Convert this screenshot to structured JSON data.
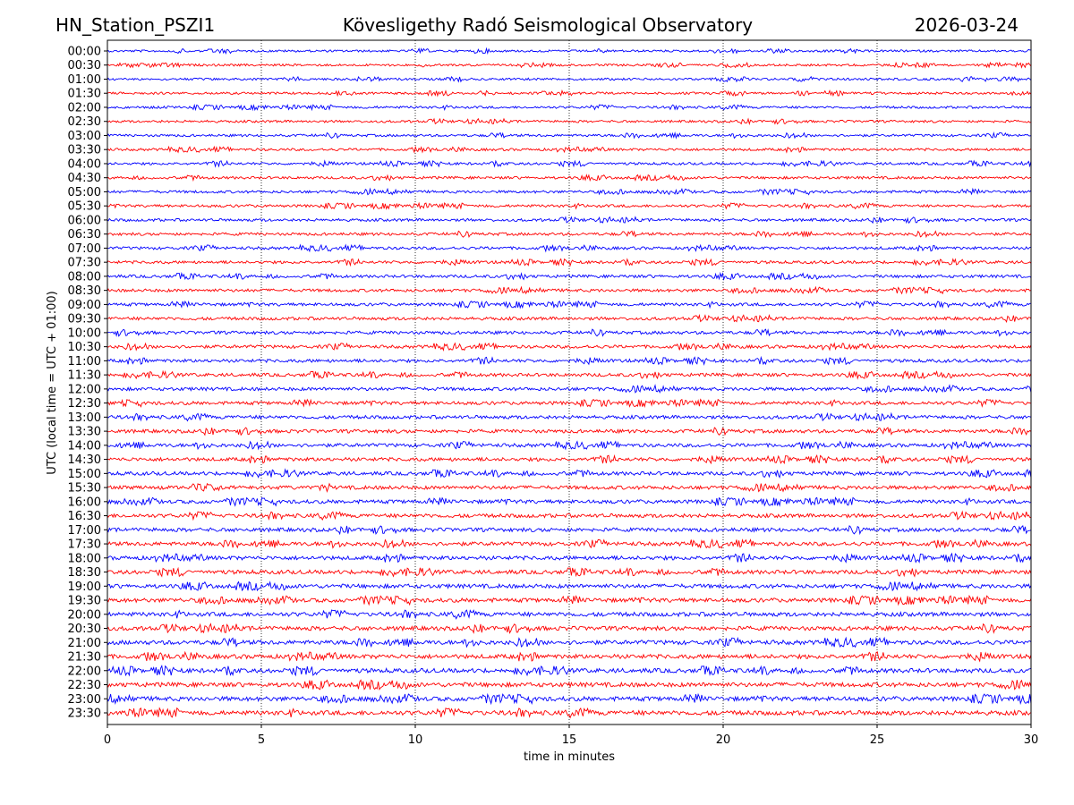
{
  "chart_data": {
    "type": "line",
    "title_left": "HN_Station_PSZI1",
    "title": "Kövesligethy Radó Seismological Observatory",
    "title_right": "2026-03-24",
    "xlabel": "time in minutes",
    "ylabel": "UTC (local time = UTC + 01:00)",
    "xlim": [
      0,
      30
    ],
    "xticks": [
      0,
      5,
      10,
      15,
      20,
      25,
      30
    ],
    "grid": "vertical dotted",
    "series_colors": [
      "#0000ff",
      "#ff0000"
    ],
    "rows": [
      "00:00",
      "00:30",
      "01:00",
      "01:30",
      "02:00",
      "02:30",
      "03:00",
      "03:30",
      "04:00",
      "04:30",
      "05:00",
      "05:30",
      "06:00",
      "06:30",
      "07:00",
      "07:30",
      "08:00",
      "08:30",
      "09:00",
      "09:30",
      "10:00",
      "10:30",
      "11:00",
      "11:30",
      "12:00",
      "12:30",
      "13:00",
      "13:30",
      "14:00",
      "14:30",
      "15:00",
      "15:30",
      "16:00",
      "16:30",
      "17:00",
      "17:30",
      "18:00",
      "18:30",
      "19:00",
      "19:30",
      "20:00",
      "20:30",
      "21:00",
      "21:30",
      "22:00",
      "22:30",
      "23:00",
      "23:30"
    ],
    "trace_note": "continuous seismometer noise traces, one per 30-minute row"
  }
}
